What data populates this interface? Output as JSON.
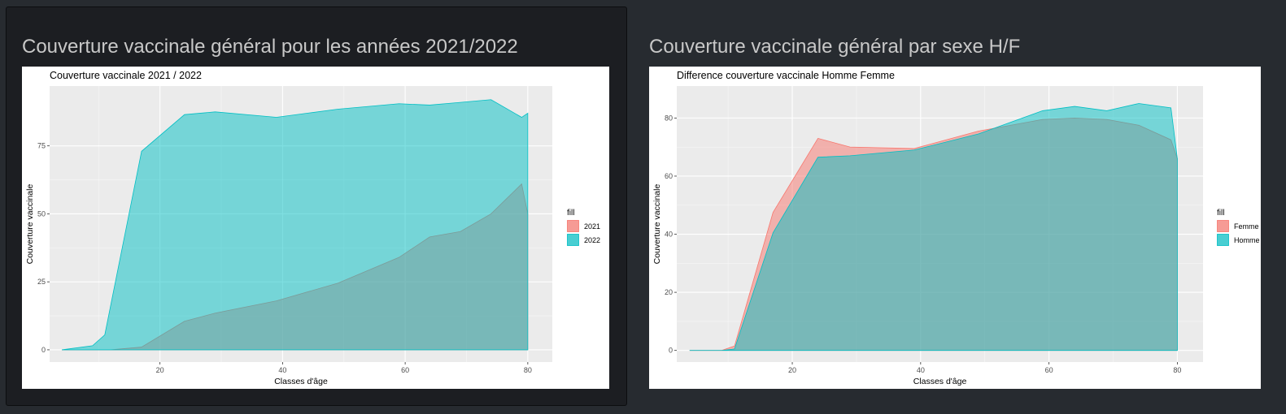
{
  "panels": [
    {
      "title": "Couverture vaccinale général pour les années 2021/2022"
    },
    {
      "title": "Couverture vaccinale général par sexe H/F"
    }
  ],
  "colors": {
    "page_bg": "#272b30",
    "panel_bg": "#1c1e22",
    "title": "#c8c8c8",
    "plot_bg": "#ebebeb",
    "fill_a": "#f8766d",
    "fill_b": "#00bfc4"
  },
  "chart_data": [
    {
      "type": "area",
      "title": "Couverture vaccinale 2021 / 2022",
      "xlabel": "Classes d'âge",
      "ylabel": "Couverture vaccinale",
      "legend_title": "fill",
      "legend_position": "right",
      "xlim": [
        2,
        84
      ],
      "ylim": [
        -4.5,
        97
      ],
      "xticks": [
        20,
        40,
        60,
        80
      ],
      "yticks": [
        0,
        25,
        50,
        75
      ],
      "grid": true,
      "series": [
        {
          "name": "2021",
          "color": "#f8766d",
          "x": [
            4,
            9,
            12,
            17,
            24,
            29,
            39,
            49,
            59,
            64,
            69,
            74,
            79,
            80,
            80
          ],
          "y": [
            0,
            0,
            0,
            1,
            10.5,
            13.5,
            18,
            24.5,
            34,
            41.5,
            43.5,
            50,
            61,
            50,
            5
          ]
        },
        {
          "name": "2022",
          "color": "#00bfc4",
          "x": [
            4,
            9,
            11,
            17,
            24,
            29,
            39,
            49,
            59,
            64,
            69,
            74,
            79,
            80
          ],
          "y": [
            0,
            1.5,
            5.5,
            73,
            86.5,
            87.5,
            85.5,
            88.5,
            90.5,
            90,
            91,
            92,
            85.5,
            87
          ]
        }
      ]
    },
    {
      "type": "area",
      "title": "Difference couverture vaccinale Homme Femme",
      "xlabel": "Classes d'âge",
      "ylabel": "Couverture vaccinale",
      "legend_title": "fill",
      "legend_position": "right",
      "xlim": [
        2,
        84
      ],
      "ylim": [
        -4,
        91
      ],
      "xticks": [
        20,
        40,
        60,
        80
      ],
      "yticks": [
        0,
        20,
        40,
        60,
        80
      ],
      "grid": true,
      "series": [
        {
          "name": "Femme",
          "color": "#f8766d",
          "x": [
            4,
            9,
            11,
            17,
            24,
            29,
            39,
            49,
            59,
            64,
            69,
            74,
            79,
            80
          ],
          "y": [
            0,
            0,
            1.5,
            47.5,
            73,
            70,
            69.5,
            75.5,
            79.5,
            80,
            79.5,
            77.5,
            72.5,
            66
          ]
        },
        {
          "name": "Homme",
          "color": "#00bfc4",
          "x": [
            4,
            9,
            11,
            17,
            24,
            29,
            39,
            49,
            59,
            64,
            69,
            74,
            79,
            80
          ],
          "y": [
            0,
            0,
            0.5,
            40.5,
            66.5,
            67,
            69,
            74.5,
            82.5,
            84,
            82.5,
            85,
            83.5,
            66
          ]
        }
      ]
    }
  ]
}
